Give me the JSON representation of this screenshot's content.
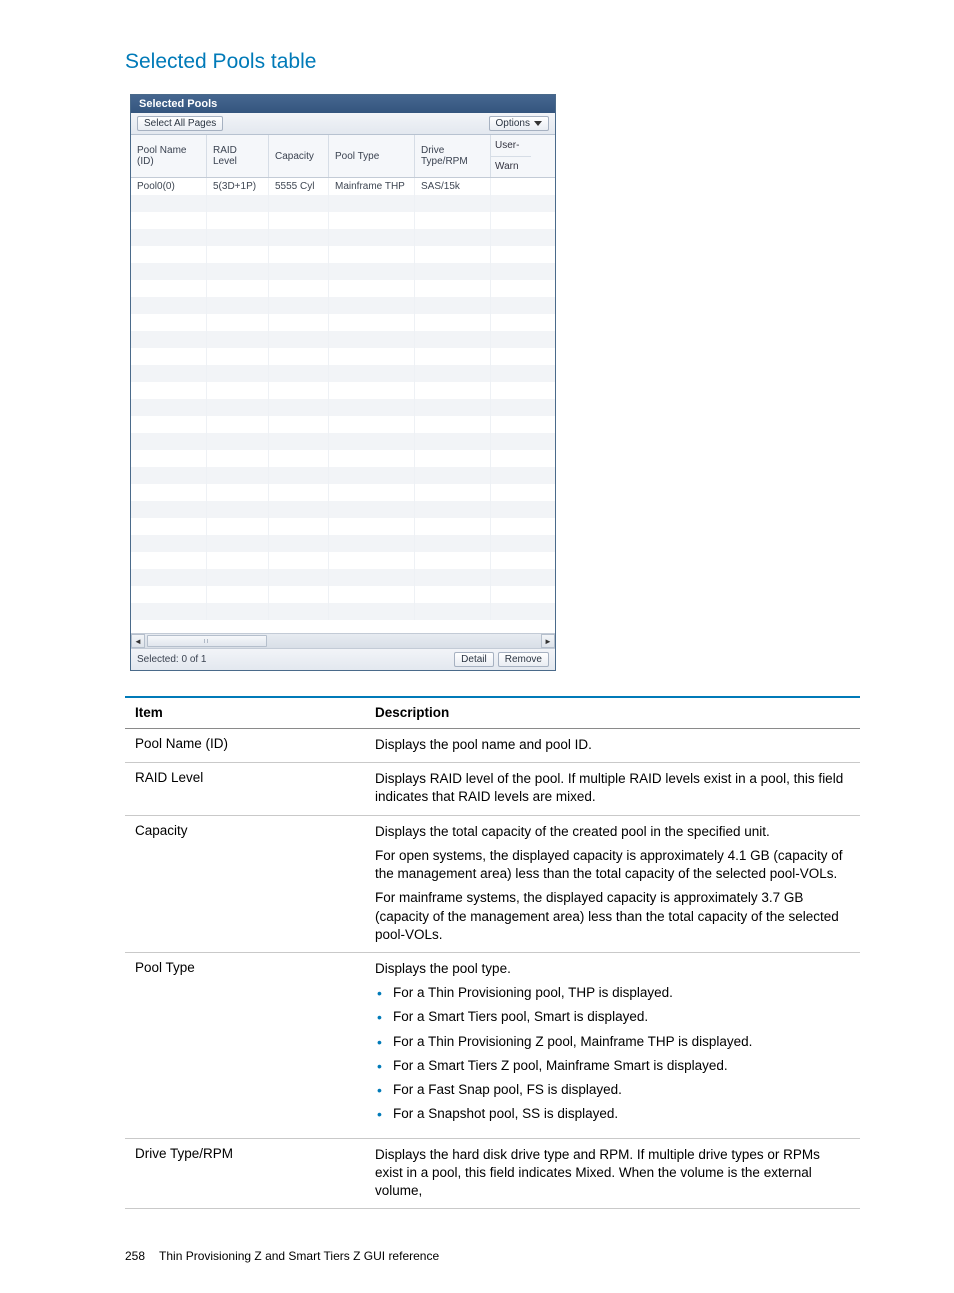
{
  "section_title": "Selected Pools table",
  "widget": {
    "title": "Selected Pools",
    "select_all_label": "Select All Pages",
    "options_label": "Options",
    "columns": {
      "pool_name": "Pool Name (ID)",
      "raid": "RAID Level",
      "capacity": "Capacity",
      "pool_type": "Pool Type",
      "drive": "Drive Type/RPM",
      "user": "User-",
      "warn": "Warn"
    },
    "row": {
      "pool_name": "Pool0(0)",
      "raid": "5(3D+1P)",
      "capacity": "5555 Cyl",
      "pool_type": "Mainframe THP",
      "drive": "SAS/15k"
    },
    "empty_rows": 25,
    "selected_label": "Selected:  0   of  1",
    "detail_label": "Detail",
    "remove_label": "Remove",
    "colors": {
      "title_bg_top": "#45668f",
      "title_bg_bottom": "#34557e",
      "border": "#4a6a8a",
      "header_bg": "#f5f7fa",
      "stripe_bg": "#f2f4f7",
      "toolbar_bg_top": "#f2f4f8",
      "toolbar_bg_bottom": "#e3e8ef"
    }
  },
  "desc_table": {
    "header_item": "Item",
    "header_desc": "Description",
    "rows": [
      {
        "item": "Pool Name (ID)",
        "paras": [
          "Displays the pool name and pool ID."
        ]
      },
      {
        "item": "RAID Level",
        "paras": [
          "Displays RAID level of the pool. If multiple RAID levels exist in a pool, this field indicates that RAID levels are mixed."
        ]
      },
      {
        "item": "Capacity",
        "paras": [
          "Displays the total capacity of the created pool in the specified unit.",
          "For open systems, the displayed capacity is approximately 4.1 GB (capacity of the management area) less than the total capacity of the selected pool-VOLs.",
          "For mainframe systems, the displayed capacity is approximately 3.7 GB (capacity of the management area) less than the total capacity of the selected pool-VOLs."
        ]
      },
      {
        "item": "Pool Type",
        "paras": [
          "Displays the pool type."
        ],
        "bullets": [
          "For a Thin Provisioning pool, THP is displayed.",
          "For a Smart Tiers pool, Smart is displayed.",
          "For a Thin Provisioning Z pool, Mainframe THP is displayed.",
          "For a Smart Tiers Z pool, Mainframe Smart is displayed.",
          "For a Fast Snap pool, FS is displayed.",
          "For a Snapshot pool, SS is displayed."
        ]
      },
      {
        "item": "Drive Type/RPM",
        "paras": [
          "Displays the hard disk drive type and RPM. If multiple drive types or RPMs exist in a pool, this field indicates Mixed. When the volume is the external volume,"
        ]
      }
    ],
    "colors": {
      "border_top": "#007ab8",
      "row_border": "#c9c9c9",
      "bullet": "#007ab8"
    }
  },
  "footer": {
    "page_number": "258",
    "text": "Thin Provisioning Z and Smart Tiers Z GUI reference"
  }
}
